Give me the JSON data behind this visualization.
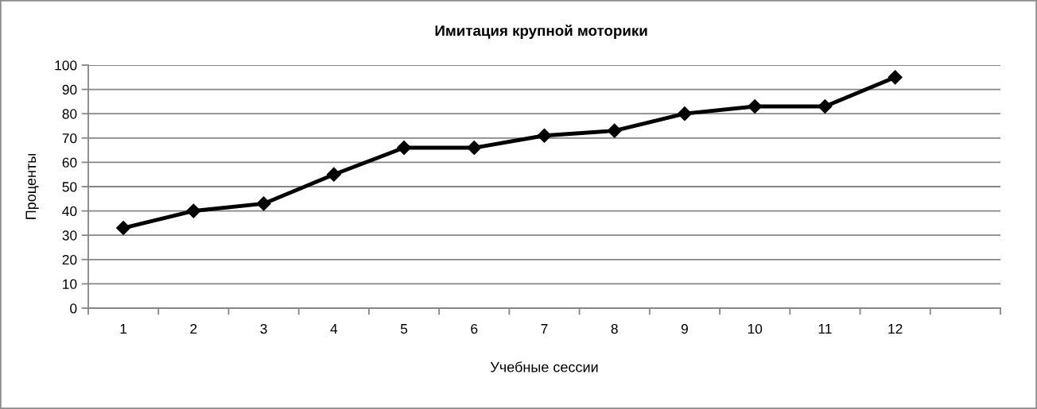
{
  "chart_data": {
    "type": "line",
    "title": "Имитация крупной моторики",
    "xlabel": "Учебные сессии",
    "ylabel": "Проценты",
    "categories": [
      "1",
      "2",
      "3",
      "4",
      "5",
      "6",
      "7",
      "8",
      "9",
      "10",
      "11",
      "12",
      null
    ],
    "series": [
      {
        "color": "#000000",
        "values": [
          33,
          40,
          43,
          55,
          66,
          66,
          71,
          73,
          80,
          83,
          83,
          95,
          null
        ]
      }
    ],
    "ylim": [
      0,
      100
    ],
    "yticks": [
      0,
      10,
      20,
      30,
      40,
      50,
      60,
      70,
      80,
      90,
      100
    ],
    "grid": "y",
    "marker": "diamond",
    "line_style": "solid"
  }
}
